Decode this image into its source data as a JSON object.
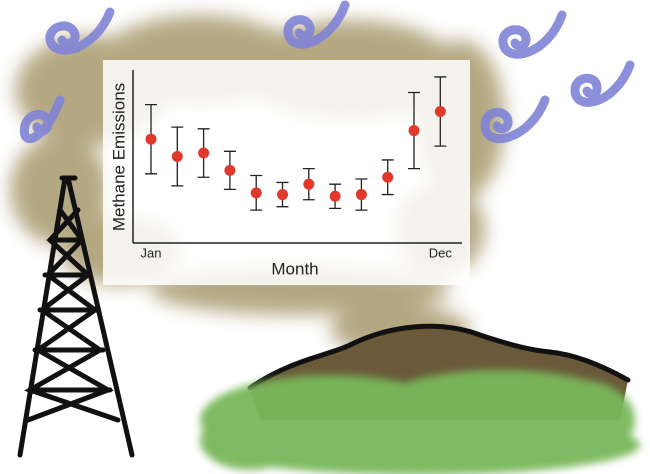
{
  "chart_data": {
    "type": "errorbar",
    "y_label": "Methane Emissions",
    "x_label": "Month",
    "categories": [
      "Jan",
      null,
      null,
      null,
      null,
      null,
      null,
      null,
      null,
      null,
      null,
      "Dec"
    ],
    "values": [
      6.0,
      5.0,
      5.2,
      4.2,
      2.9,
      2.8,
      3.4,
      2.7,
      2.8,
      3.8,
      6.5,
      7.6
    ],
    "errors": [
      2.0,
      1.7,
      1.4,
      1.1,
      1.0,
      0.7,
      0.9,
      0.7,
      0.9,
      1.0,
      2.2,
      2.0
    ],
    "color": "#e0392b",
    "ylim": [
      0,
      10
    ]
  }
}
